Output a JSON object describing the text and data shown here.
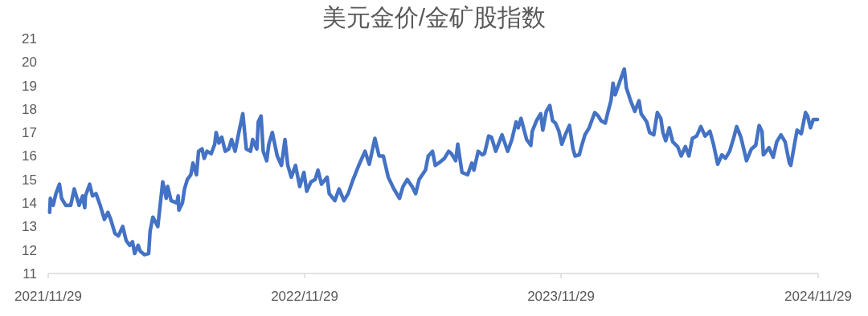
{
  "chart_data": {
    "type": "line",
    "title": "美元金价/金矿股指数",
    "color": "#4472c4",
    "marker": "none",
    "grid": false,
    "xlim": [
      "2021-11-29",
      "2024-11-29"
    ],
    "xticks": [
      {
        "value": "2021-11-29",
        "label": "2021/11/29"
      },
      {
        "value": "2022-11-29",
        "label": "2022/11/29"
      },
      {
        "value": "2023-11-29",
        "label": "2023/11/29"
      },
      {
        "value": "2024-11-29",
        "label": "2024/11/29"
      }
    ],
    "ylim": [
      11,
      21
    ],
    "yticks": [
      11,
      12,
      13,
      14,
      15,
      16,
      17,
      18,
      19,
      20,
      21
    ],
    "x": [
      "2021-12-01",
      "2021-12-02",
      "2021-12-06",
      "2021-12-10",
      "2021-12-15",
      "2021-12-18",
      "2021-12-24",
      "2021-12-31",
      "2022-01-05",
      "2022-01-12",
      "2022-01-17",
      "2022-01-20",
      "2022-01-21",
      "2022-01-27",
      "2022-01-31",
      "2022-02-05",
      "2022-02-11",
      "2022-02-17",
      "2022-02-22",
      "2022-02-26",
      "2022-03-04",
      "2022-03-09",
      "2022-03-15",
      "2022-03-20",
      "2022-03-25",
      "2022-03-29",
      "2022-04-01",
      "2022-04-06",
      "2022-04-09",
      "2022-04-15",
      "2022-04-21",
      "2022-04-23",
      "2022-04-27",
      "2022-05-04",
      "2022-05-11",
      "2022-05-16",
      "2022-05-18",
      "2022-05-23",
      "2022-05-31",
      "2022-06-02",
      "2022-06-03",
      "2022-06-08",
      "2022-06-11",
      "2022-06-15",
      "2022-06-20",
      "2022-06-23",
      "2022-06-28",
      "2022-07-01",
      "2022-07-06",
      "2022-07-09",
      "2022-07-13",
      "2022-07-19",
      "2022-07-24",
      "2022-07-26",
      "2022-07-30",
      "2022-08-03",
      "2022-08-08",
      "2022-08-13",
      "2022-08-17",
      "2022-08-22",
      "2022-08-28",
      "2022-09-02",
      "2022-09-07",
      "2022-09-13",
      "2022-09-16",
      "2022-09-22",
      "2022-09-24",
      "2022-09-28",
      "2022-10-01",
      "2022-10-06",
      "2022-10-09",
      "2022-10-14",
      "2022-10-21",
      "2022-10-27",
      "2022-11-01",
      "2022-11-05",
      "2022-11-10",
      "2022-11-16",
      "2022-11-22",
      "2022-11-28",
      "2022-12-02",
      "2022-12-08",
      "2022-12-14",
      "2022-12-18",
      "2022-12-23",
      "2022-12-31",
      "2023-01-03",
      "2023-01-11",
      "2023-01-17",
      "2023-01-24",
      "2023-01-30",
      "2023-02-06",
      "2023-02-14",
      "2023-02-23",
      "2023-03-01",
      "2023-03-09",
      "2023-03-15",
      "2023-03-21",
      "2023-03-28",
      "2023-04-05",
      "2023-04-13",
      "2023-04-18",
      "2023-04-24",
      "2023-05-01",
      "2023-05-06",
      "2023-05-11",
      "2023-05-20",
      "2023-05-24",
      "2023-05-30",
      "2023-06-03",
      "2023-06-10",
      "2023-06-16",
      "2023-06-22",
      "2023-06-26",
      "2023-07-02",
      "2023-07-05",
      "2023-07-11",
      "2023-07-19",
      "2023-07-25",
      "2023-07-28",
      "2023-08-03",
      "2023-08-09",
      "2023-08-12",
      "2023-08-18",
      "2023-08-22",
      "2023-08-28",
      "2023-09-06",
      "2023-09-14",
      "2023-09-20",
      "2023-09-26",
      "2023-09-29",
      "2023-10-03",
      "2023-10-11",
      "2023-10-17",
      "2023-10-19",
      "2023-10-25",
      "2023-10-31",
      "2023-11-03",
      "2023-11-08",
      "2023-11-13",
      "2023-11-17",
      "2023-11-21",
      "2023-11-26",
      "2023-11-30",
      "2023-12-05",
      "2023-12-11",
      "2023-12-16",
      "2023-12-19",
      "2023-12-25",
      "2023-12-28",
      "2024-01-02",
      "2024-01-08",
      "2024-01-16",
      "2024-01-21",
      "2024-01-25",
      "2024-01-31",
      "2024-02-04",
      "2024-02-08",
      "2024-02-11",
      "2024-02-14",
      "2024-02-21",
      "2024-02-27",
      "2024-03-01",
      "2024-03-07",
      "2024-03-13",
      "2024-03-19",
      "2024-03-22",
      "2024-03-30",
      "2024-04-03",
      "2024-04-09",
      "2024-04-14",
      "2024-04-19",
      "2024-04-22",
      "2024-04-26",
      "2024-05-01",
      "2024-05-06",
      "2024-05-13",
      "2024-05-18",
      "2024-05-24",
      "2024-05-29",
      "2024-06-03",
      "2024-06-09",
      "2024-06-15",
      "2024-06-21",
      "2024-06-28",
      "2024-07-03",
      "2024-07-09",
      "2024-07-15",
      "2024-07-20",
      "2024-07-26",
      "2024-08-01",
      "2024-08-05",
      "2024-08-11",
      "2024-08-19",
      "2024-08-26",
      "2024-09-01",
      "2024-09-06",
      "2024-09-10",
      "2024-09-12",
      "2024-09-20",
      "2024-09-26",
      "2024-10-01",
      "2024-10-07",
      "2024-10-13",
      "2024-10-19",
      "2024-10-21",
      "2024-10-26",
      "2024-10-30",
      "2024-11-05",
      "2024-11-11",
      "2024-11-14",
      "2024-11-18",
      "2024-11-22",
      "2024-11-28"
    ],
    "values": [
      13.6,
      14.2,
      13.9,
      14.4,
      14.8,
      14.2,
      13.9,
      13.9,
      14.6,
      13.9,
      14.3,
      13.8,
      14.3,
      14.8,
      14.3,
      14.4,
      13.9,
      13.3,
      13.6,
      13.3,
      12.7,
      12.6,
      13.0,
      12.4,
      12.2,
      12.35,
      11.85,
      12.2,
      11.95,
      11.8,
      11.85,
      12.8,
      13.4,
      13.0,
      14.9,
      14.2,
      14.7,
      14.1,
      14.0,
      14.3,
      13.7,
      14.0,
      14.6,
      15.0,
      15.2,
      15.7,
      15.2,
      16.2,
      16.3,
      15.9,
      16.2,
      16.1,
      16.5,
      17.0,
      16.55,
      16.8,
      16.2,
      16.3,
      16.7,
      16.2,
      17.1,
      17.8,
      16.3,
      16.2,
      16.7,
      16.3,
      17.45,
      17.7,
      16.2,
      15.8,
      16.5,
      17.0,
      16.0,
      15.6,
      16.7,
      15.6,
      15.1,
      15.6,
      14.7,
      15.3,
      14.5,
      14.9,
      15.0,
      15.4,
      14.8,
      15.1,
      14.4,
      14.1,
      14.6,
      14.1,
      14.4,
      15.0,
      15.6,
      16.2,
      15.65,
      16.75,
      16.0,
      16.0,
      15.1,
      14.6,
      14.2,
      14.7,
      15.0,
      14.7,
      14.4,
      15.0,
      15.4,
      16.0,
      16.2,
      15.6,
      15.75,
      15.9,
      16.2,
      16.1,
      15.8,
      16.5,
      15.3,
      15.2,
      15.7,
      15.4,
      16.2,
      16.05,
      16.1,
      16.85,
      16.8,
      16.2,
      16.9,
      16.2,
      16.7,
      17.45,
      17.2,
      17.6,
      16.7,
      16.45,
      17.05,
      17.5,
      17.8,
      17.1,
      17.9,
      18.15,
      17.5,
      17.4,
      17.05,
      16.5,
      16.9,
      17.3,
      16.3,
      16.0,
      16.05,
      16.4,
      16.9,
      17.2,
      17.85,
      17.7,
      17.5,
      17.4,
      17.9,
      18.35,
      19.1,
      18.6,
      19.2,
      19.7,
      18.9,
      18.35,
      17.9,
      18.35,
      17.8,
      17.45,
      17.0,
      16.9,
      17.85,
      17.6,
      17.0,
      16.65,
      17.2,
      16.6,
      16.4,
      16.0,
      16.4,
      16.0,
      16.75,
      16.85,
      17.25,
      16.85,
      17.05,
      16.5,
      15.65,
      16.05,
      15.9,
      16.2,
      16.8,
      17.25,
      16.8,
      15.8,
      16.3,
      16.45,
      17.3,
      17.05,
      16.05,
      16.35,
      15.95,
      16.6,
      16.9,
      16.6,
      15.7,
      15.6,
      16.45,
      17.1,
      16.95,
      17.85,
      17.7,
      17.2,
      17.55,
      17.55
    ]
  }
}
